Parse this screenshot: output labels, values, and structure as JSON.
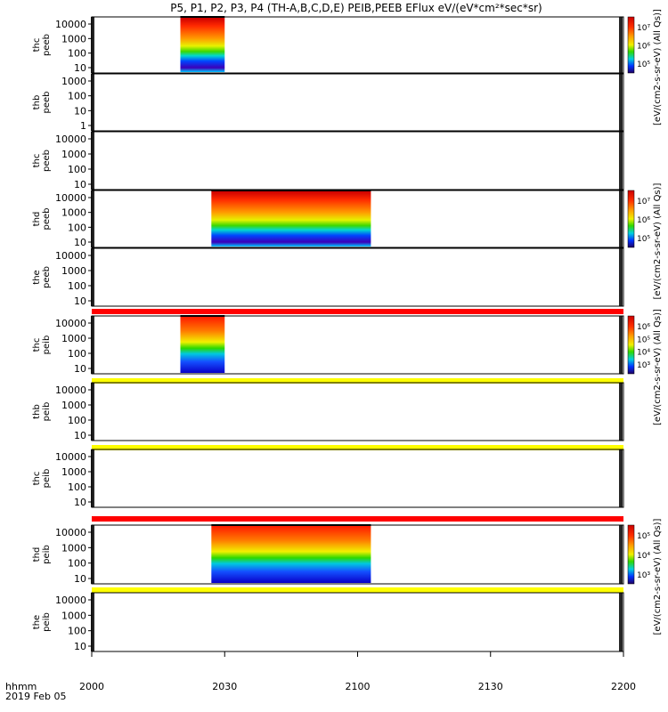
{
  "title": "P5, P1, P2, P3, P4 (TH-A,B,C,D,E) PEIB,PEEB EFlux eV/(eV*cm²*sec*sr)",
  "time_label_1": "hhmm",
  "time_label_2": "2019 Feb 05",
  "colors": {
    "red_band": "#ff0000",
    "yellow_band": "#ffff00",
    "frame": "#000000"
  },
  "chart_data": {
    "type": "heatmap",
    "x_axis": {
      "ticks": [
        "2000",
        "2030",
        "2100",
        "2130",
        "2200"
      ],
      "range": [
        "20:00",
        "22:00"
      ]
    },
    "colormap": "rainbow (purple-blue-cyan-green-yellow-red)",
    "panels": [
      {
        "ylabel": [
          "thc",
          "peeb"
        ],
        "yticks": [
          "10000",
          "1000",
          "100",
          "10"
        ],
        "scale": "log",
        "data_interval": [
          "20:20",
          "20:30"
        ],
        "colorbar_label": "[eV/(cm2-s-sr-eV) (All Qs)]",
        "colorbar_ticks": [
          "10⁷",
          "10⁶",
          "10⁵"
        ]
      },
      {
        "ylabel": [
          "thb",
          "peeb"
        ],
        "yticks": [
          "1000",
          "100",
          "10",
          "1"
        ],
        "scale": "log"
      },
      {
        "ylabel": [
          "thc",
          "peeb"
        ],
        "yticks": [
          "10000",
          "1000",
          "100",
          "10"
        ],
        "scale": "log"
      },
      {
        "ylabel": [
          "thd",
          "peeb"
        ],
        "yticks": [
          "10000",
          "1000",
          "100",
          "10"
        ],
        "scale": "log",
        "data_interval": [
          "20:27",
          "21:03"
        ],
        "colorbar_label": "[eV/(cm2-s-sr-eV) (All Qs)]",
        "colorbar_ticks": [
          "10⁷",
          "10⁶",
          "10⁵"
        ]
      },
      {
        "ylabel": [
          "the",
          "peeb"
        ],
        "yticks": [
          "10000",
          "1000",
          "100",
          "10"
        ],
        "scale": "log",
        "band_below": "red"
      },
      {
        "ylabel": [
          "thc",
          "peib"
        ],
        "yticks": [
          "10000",
          "1000",
          "100",
          "10"
        ],
        "scale": "log",
        "data_interval": [
          "20:20",
          "20:30"
        ],
        "colorbar_label": "[eV/(cm2-s-sr-eV) (All Qs)]",
        "colorbar_ticks": [
          "10⁶",
          "10⁵",
          "10⁴",
          "10³"
        ],
        "band_below": "yellow"
      },
      {
        "ylabel": [
          "thb",
          "peib"
        ],
        "yticks": [
          "10000",
          "1000",
          "100",
          "10"
        ],
        "scale": "log",
        "band_below": "yellow"
      },
      {
        "ylabel": [
          "thc",
          "peib"
        ],
        "yticks": [
          "10000",
          "1000",
          "100",
          "10"
        ],
        "scale": "log",
        "band_below": "red"
      },
      {
        "ylabel": [
          "thd",
          "peib"
        ],
        "yticks": [
          "10000",
          "1000",
          "100",
          "10"
        ],
        "scale": "log",
        "data_interval": [
          "20:27",
          "21:03"
        ],
        "colorbar_label": "[eV/(cm2-s-sr-eV) (All Qs)]",
        "colorbar_ticks": [
          "10⁵",
          "10⁴",
          "10³"
        ],
        "band_below": "yellow"
      },
      {
        "ylabel": [
          "the",
          "peib"
        ],
        "yticks": [
          "10000",
          "1000",
          "100",
          "10"
        ],
        "scale": "log"
      }
    ]
  }
}
